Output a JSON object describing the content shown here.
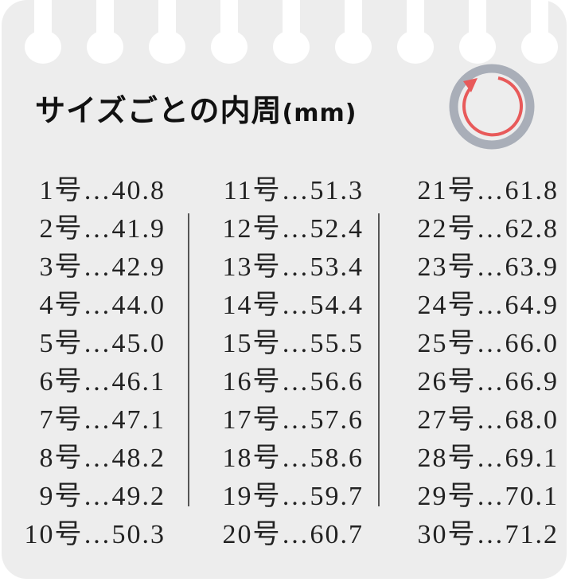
{
  "title": {
    "text": "サイズごとの内周",
    "unit": "(mm)"
  },
  "icon": {
    "name": "ring-circumference-icon",
    "ring_color": "#a9aeb8",
    "arrow_color": "#e85a5a"
  },
  "separator": "…",
  "size_suffix": "号",
  "columns": [
    {
      "rows": [
        {
          "size": "1号",
          "value": "40.8"
        },
        {
          "size": "2号",
          "value": "41.9"
        },
        {
          "size": "3号",
          "value": "42.9"
        },
        {
          "size": "4号",
          "value": "44.0"
        },
        {
          "size": "5号",
          "value": "45.0"
        },
        {
          "size": "6号",
          "value": "46.1"
        },
        {
          "size": "7号",
          "value": "47.1"
        },
        {
          "size": "8号",
          "value": "48.2"
        },
        {
          "size": "9号",
          "value": "49.2"
        },
        {
          "size": "10号",
          "value": "50.3"
        }
      ]
    },
    {
      "rows": [
        {
          "size": "11号",
          "value": "51.3"
        },
        {
          "size": "12号",
          "value": "52.4"
        },
        {
          "size": "13号",
          "value": "53.4"
        },
        {
          "size": "14号",
          "value": "54.4"
        },
        {
          "size": "15号",
          "value": "55.5"
        },
        {
          "size": "16号",
          "value": "56.6"
        },
        {
          "size": "17号",
          "value": "57.6"
        },
        {
          "size": "18号",
          "value": "58.6"
        },
        {
          "size": "19号",
          "value": "59.7"
        },
        {
          "size": "20号",
          "value": "60.7"
        }
      ]
    },
    {
      "rows": [
        {
          "size": "21号",
          "value": "61.8"
        },
        {
          "size": "22号",
          "value": "62.8"
        },
        {
          "size": "23号",
          "value": "63.9"
        },
        {
          "size": "24号",
          "value": "64.9"
        },
        {
          "size": "25号",
          "value": "66.0"
        },
        {
          "size": "26号",
          "value": "66.9"
        },
        {
          "size": "27号",
          "value": "68.0"
        },
        {
          "size": "28号",
          "value": "69.1"
        },
        {
          "size": "29号",
          "value": "70.1"
        },
        {
          "size": "30号",
          "value": "71.2"
        }
      ]
    }
  ]
}
